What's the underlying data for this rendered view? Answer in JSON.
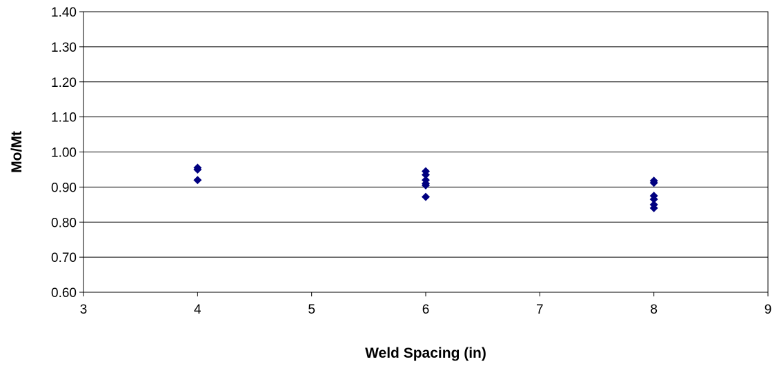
{
  "chart_data": {
    "type": "scatter",
    "title": "",
    "xlabel": "Weld Spacing (in)",
    "ylabel": "Mo/Mt",
    "xlim": [
      3,
      9
    ],
    "ylim": [
      0.6,
      1.4
    ],
    "x_ticks": [
      "3",
      "4",
      "5",
      "6",
      "7",
      "8",
      "9"
    ],
    "y_ticks": [
      "0.60",
      "0.70",
      "0.80",
      "0.90",
      "1.00",
      "1.10",
      "1.20",
      "1.30",
      "1.40"
    ],
    "grid": "horizontal",
    "legend": "none",
    "marker": "diamond",
    "marker_color": "#000080",
    "series": [
      {
        "points": [
          {
            "x": 4,
            "y": 0.955
          },
          {
            "x": 4,
            "y": 0.95
          },
          {
            "x": 4,
            "y": 0.92
          },
          {
            "x": 6,
            "y": 0.945
          },
          {
            "x": 6,
            "y": 0.935
          },
          {
            "x": 6,
            "y": 0.92
          },
          {
            "x": 6,
            "y": 0.91
          },
          {
            "x": 6,
            "y": 0.905
          },
          {
            "x": 6,
            "y": 0.872
          },
          {
            "x": 8,
            "y": 0.918
          },
          {
            "x": 8,
            "y": 0.912
          },
          {
            "x": 8,
            "y": 0.875
          },
          {
            "x": 8,
            "y": 0.865
          },
          {
            "x": 8,
            "y": 0.85
          },
          {
            "x": 8,
            "y": 0.84
          }
        ]
      }
    ]
  }
}
